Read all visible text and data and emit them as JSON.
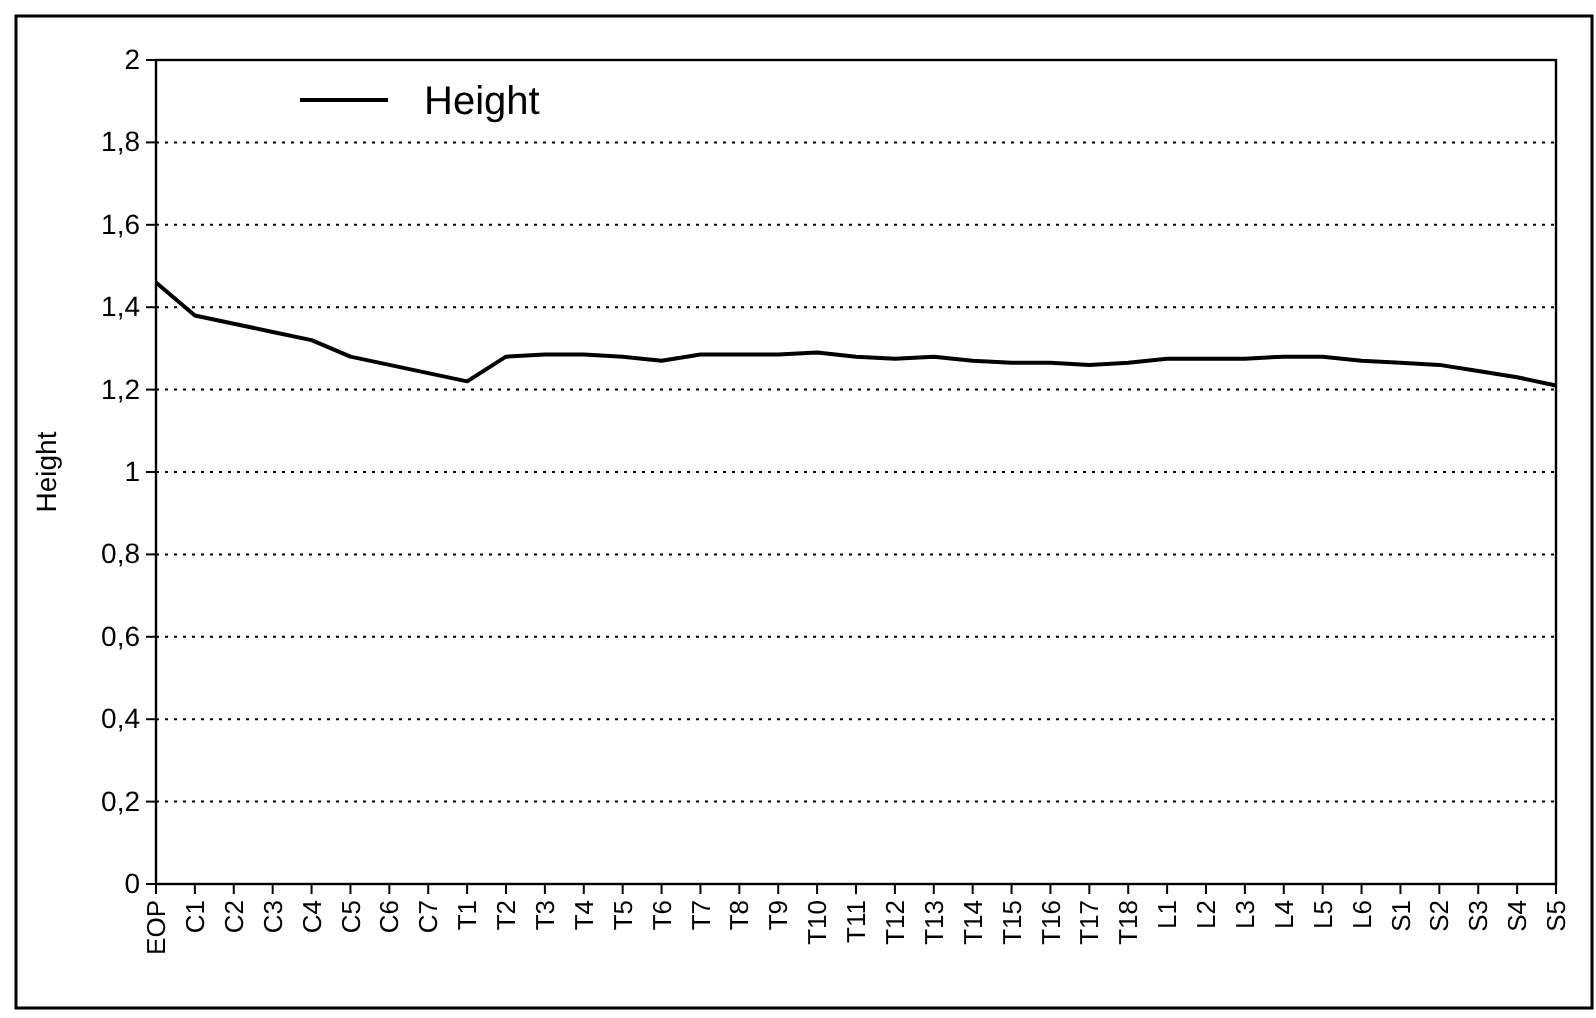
{
  "chart_data": {
    "type": "line",
    "ylabel": "Height",
    "categories": [
      "EOP",
      "C1",
      "C2",
      "C3",
      "C4",
      "C5",
      "C6",
      "C7",
      "T1",
      "T2",
      "T3",
      "T4",
      "T5",
      "T6",
      "T7",
      "T8",
      "T9",
      "T10",
      "T11",
      "T12",
      "T13",
      "T14",
      "T15",
      "T16",
      "T17",
      "T18",
      "L1",
      "L2",
      "L3",
      "L4",
      "L5",
      "L6",
      "S1",
      "S2",
      "S3",
      "S4",
      "S5"
    ],
    "series": [
      {
        "name": "Height",
        "color": "#000000",
        "values": [
          1.46,
          1.38,
          1.36,
          1.34,
          1.32,
          1.28,
          1.26,
          1.24,
          1.22,
          1.28,
          1.285,
          1.285,
          1.28,
          1.27,
          1.285,
          1.285,
          1.285,
          1.29,
          1.28,
          1.275,
          1.28,
          1.27,
          1.265,
          1.265,
          1.26,
          1.265,
          1.275,
          1.275,
          1.275,
          1.28,
          1.28,
          1.27,
          1.265,
          1.26,
          1.245,
          1.23,
          1.21
        ]
      }
    ],
    "ylim": [
      0,
      2
    ],
    "yticks": [
      0,
      {
        "value": 0.2,
        "label": "0,2"
      },
      {
        "value": 0.4,
        "label": "0,4"
      },
      {
        "value": 0.6,
        "label": "0,6"
      },
      {
        "value": 0.8,
        "label": "0,8"
      },
      1,
      {
        "value": 1.2,
        "label": "1,2"
      },
      {
        "value": 1.4,
        "label": "1,4"
      },
      {
        "value": 1.6,
        "label": "1,6"
      },
      {
        "value": 1.8,
        "label": "1,8"
      },
      2
    ],
    "grid": "y",
    "legend": "top left",
    "marker": "none",
    "line_style": "solid"
  }
}
